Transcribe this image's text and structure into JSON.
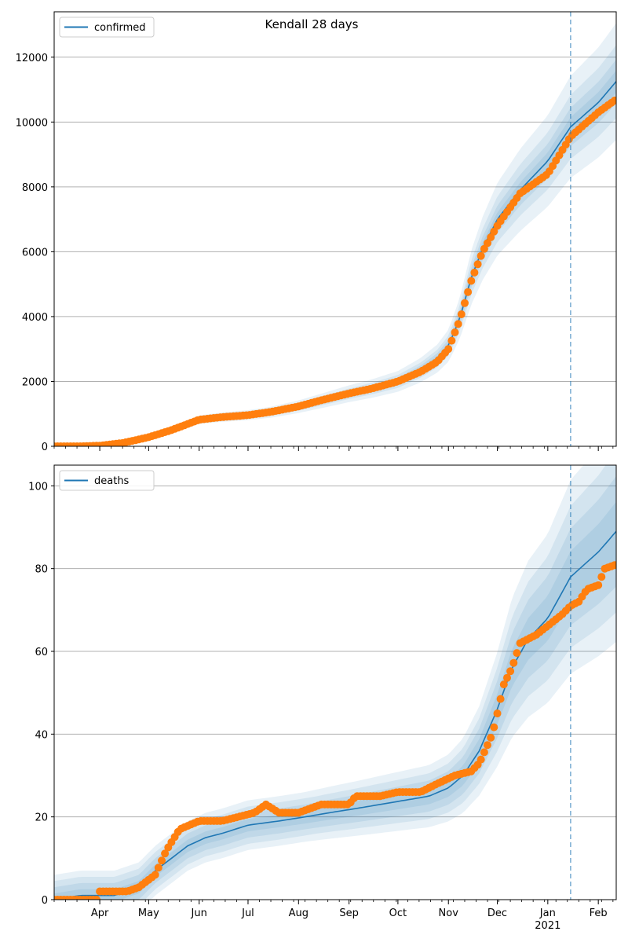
{
  "figure_title": "Kendall 28 days",
  "x_axis": {
    "month_labels": [
      "Apr",
      "May",
      "Jun",
      "Jul",
      "Aug",
      "Sep",
      "Oct",
      "Nov",
      "Dec",
      "Jan",
      "Feb"
    ],
    "year_label": "2021",
    "start": "2020-03-04",
    "end": "2021-02-12",
    "forecast_start": "2021-01-15"
  },
  "colors": {
    "model": "#1f77b4",
    "observed": "#ff7f0e",
    "band": "#1f77b4",
    "grid": "#b0b0b0",
    "vline": "#1f77b4"
  },
  "chart_data": [
    {
      "type": "line",
      "legend": "confirmed",
      "legend_position": "top-left",
      "grid": "y",
      "ylim": [
        0,
        13400
      ],
      "yticks": [
        0,
        2000,
        4000,
        6000,
        8000,
        10000,
        12000
      ],
      "model_curve": {
        "x": [
          "2020-03-04",
          "2020-03-20",
          "2020-04-01",
          "2020-04-15",
          "2020-05-01",
          "2020-05-15",
          "2020-06-01",
          "2020-06-15",
          "2020-07-01",
          "2020-07-15",
          "2020-08-01",
          "2020-08-15",
          "2020-09-01",
          "2020-09-15",
          "2020-10-01",
          "2020-10-15",
          "2020-10-25",
          "2020-11-01",
          "2020-11-08",
          "2020-11-15",
          "2020-11-22",
          "2020-12-01",
          "2020-12-15",
          "2021-01-01",
          "2021-01-15",
          "2021-02-01",
          "2021-02-12"
        ],
        "y": [
          0,
          0,
          10,
          90,
          280,
          500,
          820,
          900,
          960,
          1050,
          1220,
          1400,
          1620,
          1780,
          2000,
          2350,
          2700,
          3100,
          3950,
          5200,
          6100,
          7000,
          7900,
          8800,
          9850,
          10600,
          11250
        ]
      },
      "band_half_widths": [
        0.03,
        0.06,
        0.1,
        0.16
      ],
      "observed": {
        "x": [
          "2020-03-04",
          "2020-03-20",
          "2020-04-01",
          "2020-04-15",
          "2020-05-01",
          "2020-05-15",
          "2020-06-01",
          "2020-06-15",
          "2020-07-01",
          "2020-07-15",
          "2020-08-01",
          "2020-08-15",
          "2020-09-01",
          "2020-09-15",
          "2020-10-01",
          "2020-10-15",
          "2020-10-25",
          "2020-11-01",
          "2020-11-08",
          "2020-11-15",
          "2020-11-22",
          "2020-12-01",
          "2020-12-15",
          "2021-01-01",
          "2021-01-15",
          "2021-02-01",
          "2021-02-12"
        ],
        "y": [
          0,
          0,
          20,
          100,
          280,
          500,
          820,
          900,
          960,
          1060,
          1230,
          1420,
          1630,
          1780,
          2000,
          2300,
          2600,
          3000,
          3900,
          5100,
          6000,
          6800,
          7800,
          8400,
          9550,
          10300,
          10700
        ]
      }
    },
    {
      "type": "line",
      "legend": "deaths",
      "legend_position": "top-left",
      "grid": "y",
      "ylim": [
        0,
        105
      ],
      "yticks": [
        0,
        20,
        40,
        60,
        80,
        100
      ],
      "model_curve": {
        "x": [
          "2020-03-04",
          "2020-03-20",
          "2020-04-10",
          "2020-04-25",
          "2020-05-05",
          "2020-05-15",
          "2020-05-25",
          "2020-06-05",
          "2020-06-15",
          "2020-07-01",
          "2020-07-20",
          "2020-08-05",
          "2020-08-20",
          "2020-09-05",
          "2020-09-20",
          "2020-10-05",
          "2020-10-20",
          "2020-11-01",
          "2020-11-10",
          "2020-11-20",
          "2020-12-01",
          "2020-12-10",
          "2020-12-20",
          "2021-01-01",
          "2021-01-15",
          "2021-02-01",
          "2021-02-12"
        ],
        "y": [
          0,
          1,
          1,
          3,
          7,
          10,
          13,
          15,
          16,
          18,
          19,
          20,
          21,
          22,
          23,
          24,
          25,
          27,
          30,
          36,
          46,
          56,
          63,
          68,
          78,
          84,
          89
        ]
      },
      "band_half_widths": [
        0.08,
        0.15,
        0.22,
        0.3
      ],
      "band_floor": [
        1.5,
        3,
        4.5,
        6
      ],
      "observed": {
        "x": [
          "2020-03-04",
          "2020-03-30",
          "2020-04-01",
          "2020-04-18",
          "2020-04-25",
          "2020-05-05",
          "2020-05-12",
          "2020-05-20",
          "2020-06-01",
          "2020-06-15",
          "2020-06-25",
          "2020-07-05",
          "2020-07-12",
          "2020-07-20",
          "2020-08-01",
          "2020-08-15",
          "2020-09-01",
          "2020-09-05",
          "2020-09-20",
          "2020-10-01",
          "2020-10-15",
          "2020-10-25",
          "2020-11-05",
          "2020-11-15",
          "2020-11-20",
          "2020-11-28",
          "2020-12-01",
          "2020-12-05",
          "2020-12-10",
          "2020-12-15",
          "2020-12-25",
          "2021-01-10",
          "2021-01-15",
          "2021-01-20",
          "2021-01-25",
          "2021-02-01",
          "2021-02-05",
          "2021-02-12"
        ],
        "y": [
          0,
          0,
          2,
          2,
          3,
          6,
          12,
          17,
          19,
          19,
          20,
          21,
          23,
          21,
          21,
          23,
          23,
          25,
          25,
          26,
          26,
          28,
          30,
          31,
          33,
          40,
          45,
          52,
          56,
          62,
          64,
          69,
          71,
          72,
          75,
          76,
          80,
          81
        ]
      }
    }
  ]
}
